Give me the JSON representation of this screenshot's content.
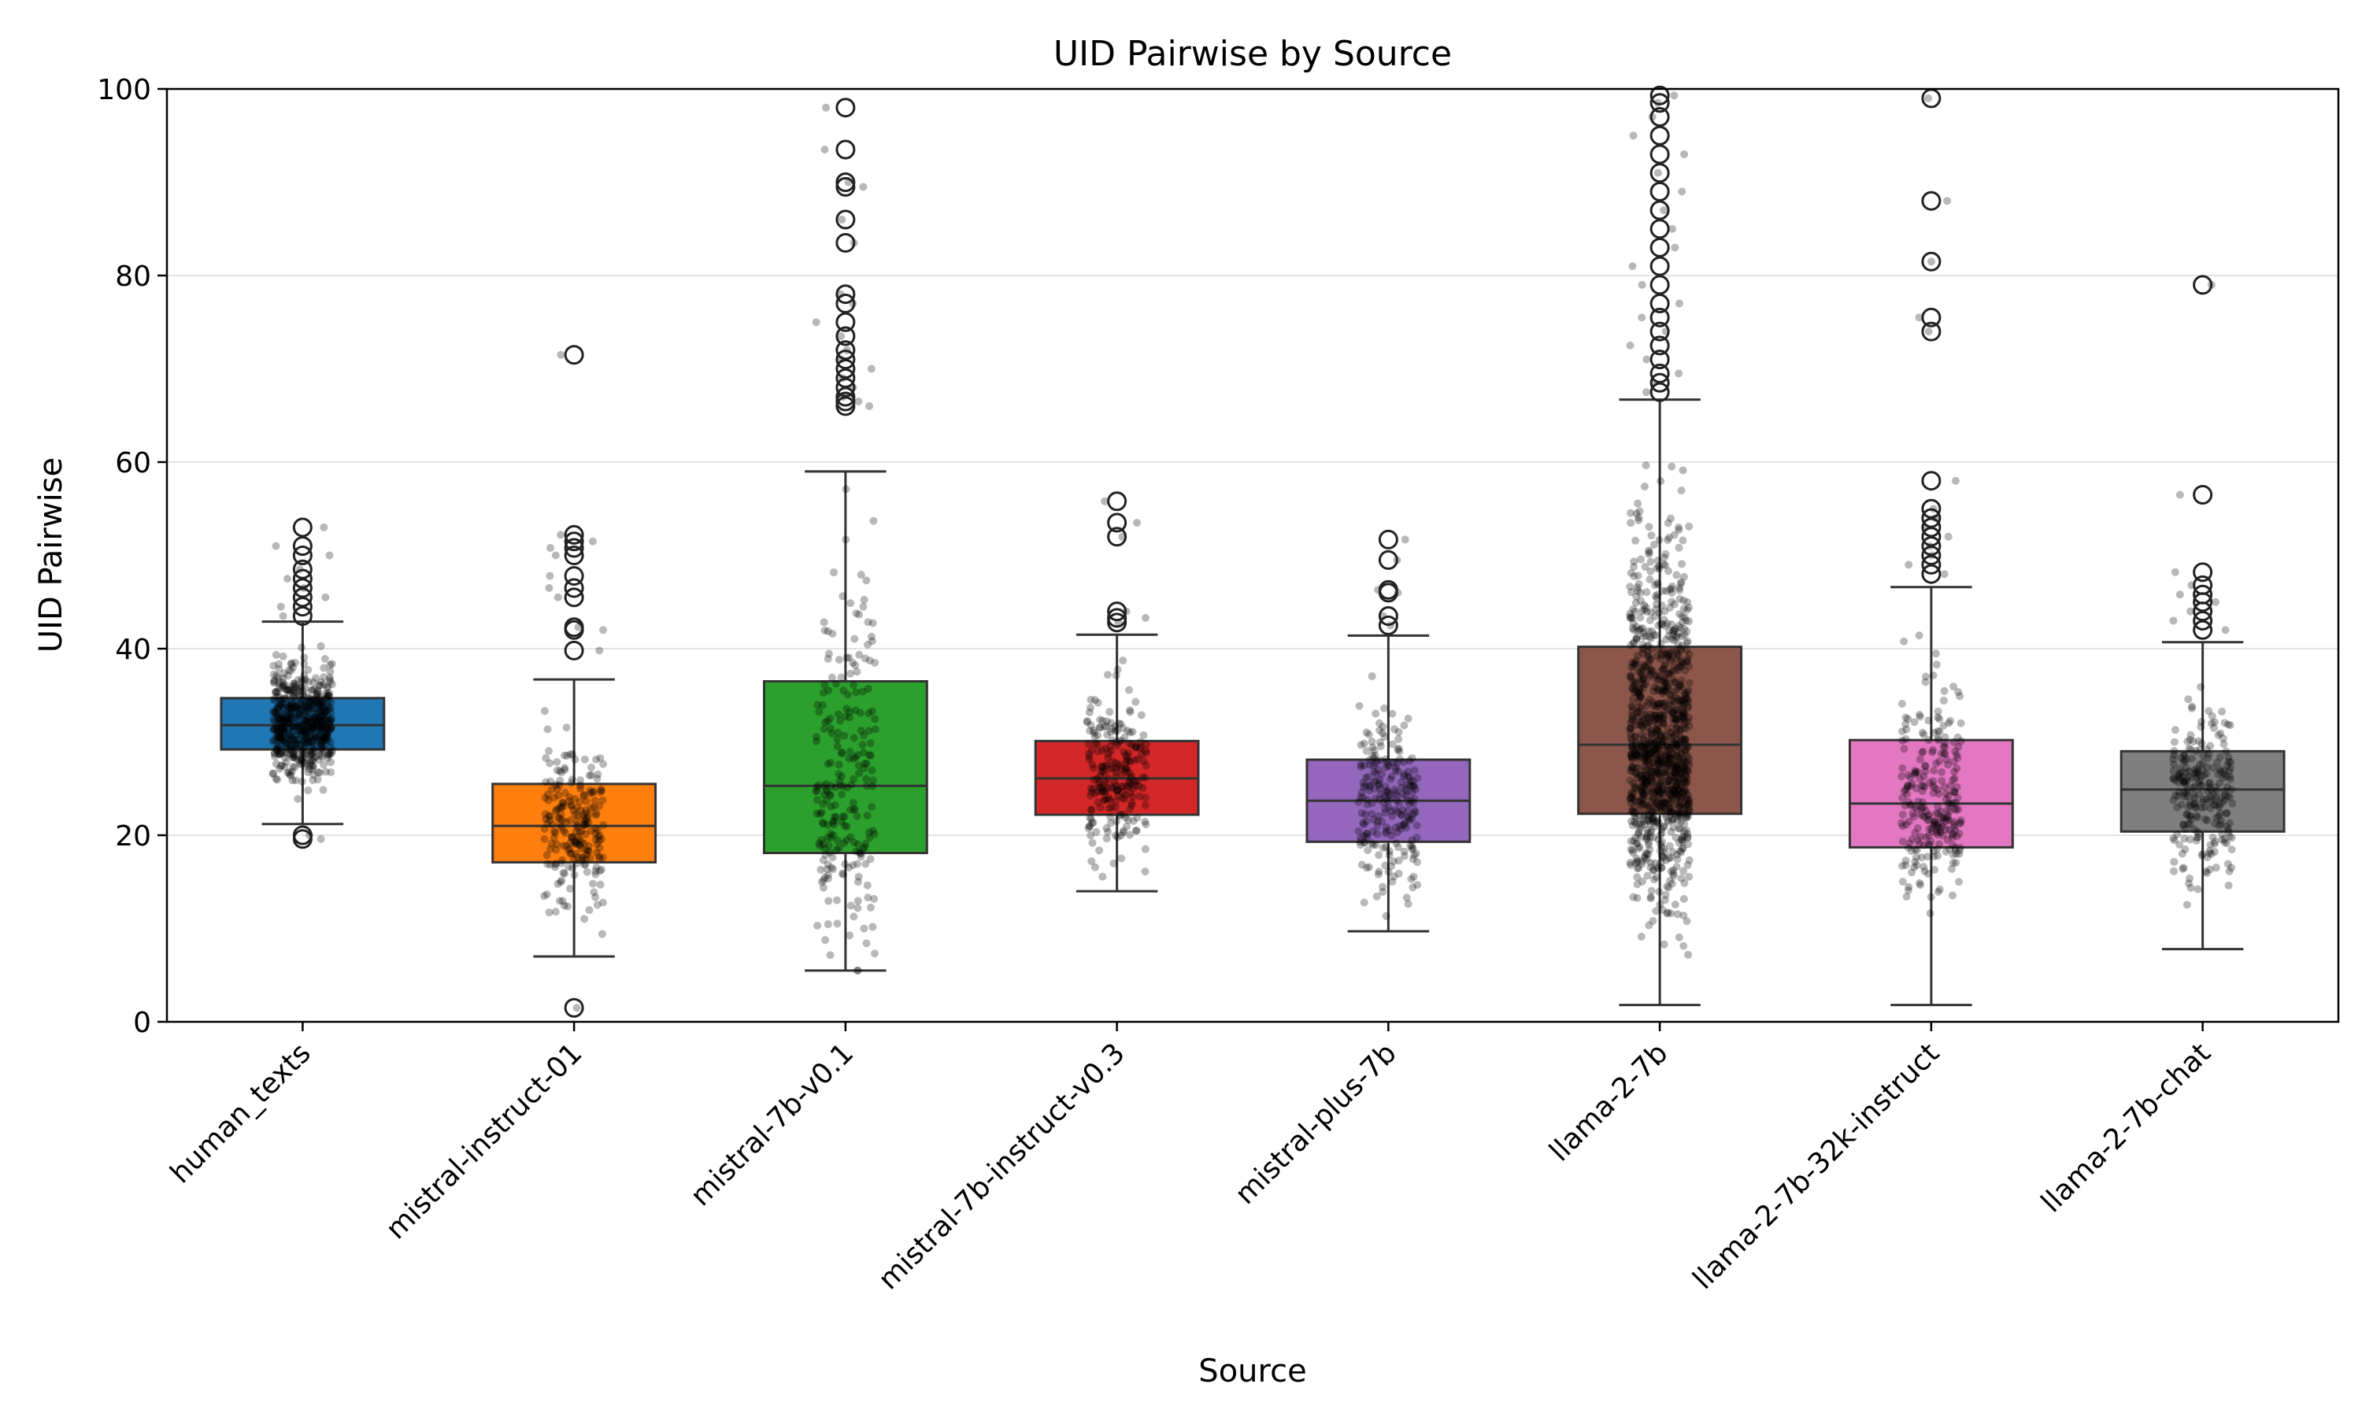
{
  "chart_data": {
    "type": "box",
    "title": "UID Pairwise by Source",
    "xlabel": "Source",
    "ylabel": "UID Pairwise",
    "ylim": [
      0,
      100
    ],
    "yticks": [
      0,
      20,
      40,
      60,
      80,
      100
    ],
    "grid": "horizontal",
    "jitter_overlay": true,
    "categories": [
      "human_texts",
      "mistral-instruct-01",
      "mistral-7b-v0.1",
      "mistral-7b-instruct-v0.3",
      "mistral-plus-7b",
      "llama-2-7b",
      "llama-2-7b-32k-instruct",
      "llama-2-7b-chat"
    ],
    "series": [
      {
        "category": "human_texts",
        "color": "#1f77b4",
        "whisker_low": 21.2,
        "q1": 29.2,
        "median": 31.8,
        "q3": 34.7,
        "whisker_high": 42.9,
        "outliers": [
          19.6,
          20.0,
          43.5,
          44.5,
          45.5,
          46.5,
          47.5,
          48.5,
          50.0,
          51.0,
          53.0
        ],
        "n_points": 600
      },
      {
        "category": "mistral-instruct-01",
        "color": "#ff7f0e",
        "whisker_low": 7.0,
        "q1": 17.1,
        "median": 21.0,
        "q3": 25.5,
        "whisker_high": 36.7,
        "outliers": [
          1.5,
          39.8,
          42.0,
          42.3,
          45.5,
          46.5,
          47.8,
          50.0,
          50.8,
          51.5,
          52.2,
          71.5
        ],
        "n_points": 220
      },
      {
        "category": "mistral-7b-v0.1",
        "color": "#2ca02c",
        "whisker_low": 5.5,
        "q1": 18.1,
        "median": 25.3,
        "q3": 36.5,
        "whisker_high": 59.0,
        "outliers": [
          66.0,
          66.5,
          67.0,
          68.0,
          69.0,
          70.0,
          71.0,
          72.0,
          73.5,
          75.0,
          77.0,
          78.0,
          83.5,
          86.0,
          89.5,
          90.0,
          93.5,
          98.0
        ],
        "n_points": 230
      },
      {
        "category": "mistral-7b-instruct-v0.3",
        "color": "#d62728",
        "whisker_low": 14.0,
        "q1": 22.2,
        "median": 26.1,
        "q3": 30.1,
        "whisker_high": 41.5,
        "outliers": [
          42.8,
          43.3,
          44.0,
          52.0,
          53.5,
          55.8
        ],
        "n_points": 230
      },
      {
        "category": "mistral-plus-7b",
        "color": "#9467bd",
        "whisker_low": 9.7,
        "q1": 19.3,
        "median": 23.7,
        "q3": 28.1,
        "whisker_high": 41.4,
        "outliers": [
          42.5,
          43.5,
          46.0,
          46.3,
          49.5,
          51.7
        ],
        "n_points": 230
      },
      {
        "category": "llama-2-7b",
        "color": "#8c564b",
        "whisker_low": 1.8,
        "q1": 22.3,
        "median": 29.7,
        "q3": 40.2,
        "whisker_high": 66.7,
        "outliers": [
          67.5,
          68.5,
          69.5,
          71.0,
          72.5,
          74.0,
          75.5,
          77.0,
          79.0,
          81.0,
          83.0,
          85.0,
          87.0,
          89.0,
          91.0,
          93.0,
          95.0,
          97.0,
          98.5,
          99.3
        ],
        "n_points": 1100
      },
      {
        "category": "llama-2-7b-32k-instruct",
        "color": "#e377c2",
        "whisker_low": 1.8,
        "q1": 18.7,
        "median": 23.4,
        "q3": 30.2,
        "whisker_high": 46.6,
        "outliers": [
          48.0,
          49.0,
          50.0,
          51.0,
          52.0,
          53.0,
          54.0,
          55.0,
          58.0,
          74.0,
          75.5,
          81.5,
          88.0,
          99.0
        ],
        "n_points": 260
      },
      {
        "category": "llama-2-7b-chat",
        "color": "#7f7f7f",
        "whisker_low": 7.8,
        "q1": 20.4,
        "median": 24.9,
        "q3": 29.0,
        "whisker_high": 40.7,
        "outliers": [
          42.0,
          43.0,
          44.0,
          45.0,
          45.8,
          46.8,
          48.2,
          56.5,
          79.0
        ],
        "n_points": 240
      }
    ]
  }
}
